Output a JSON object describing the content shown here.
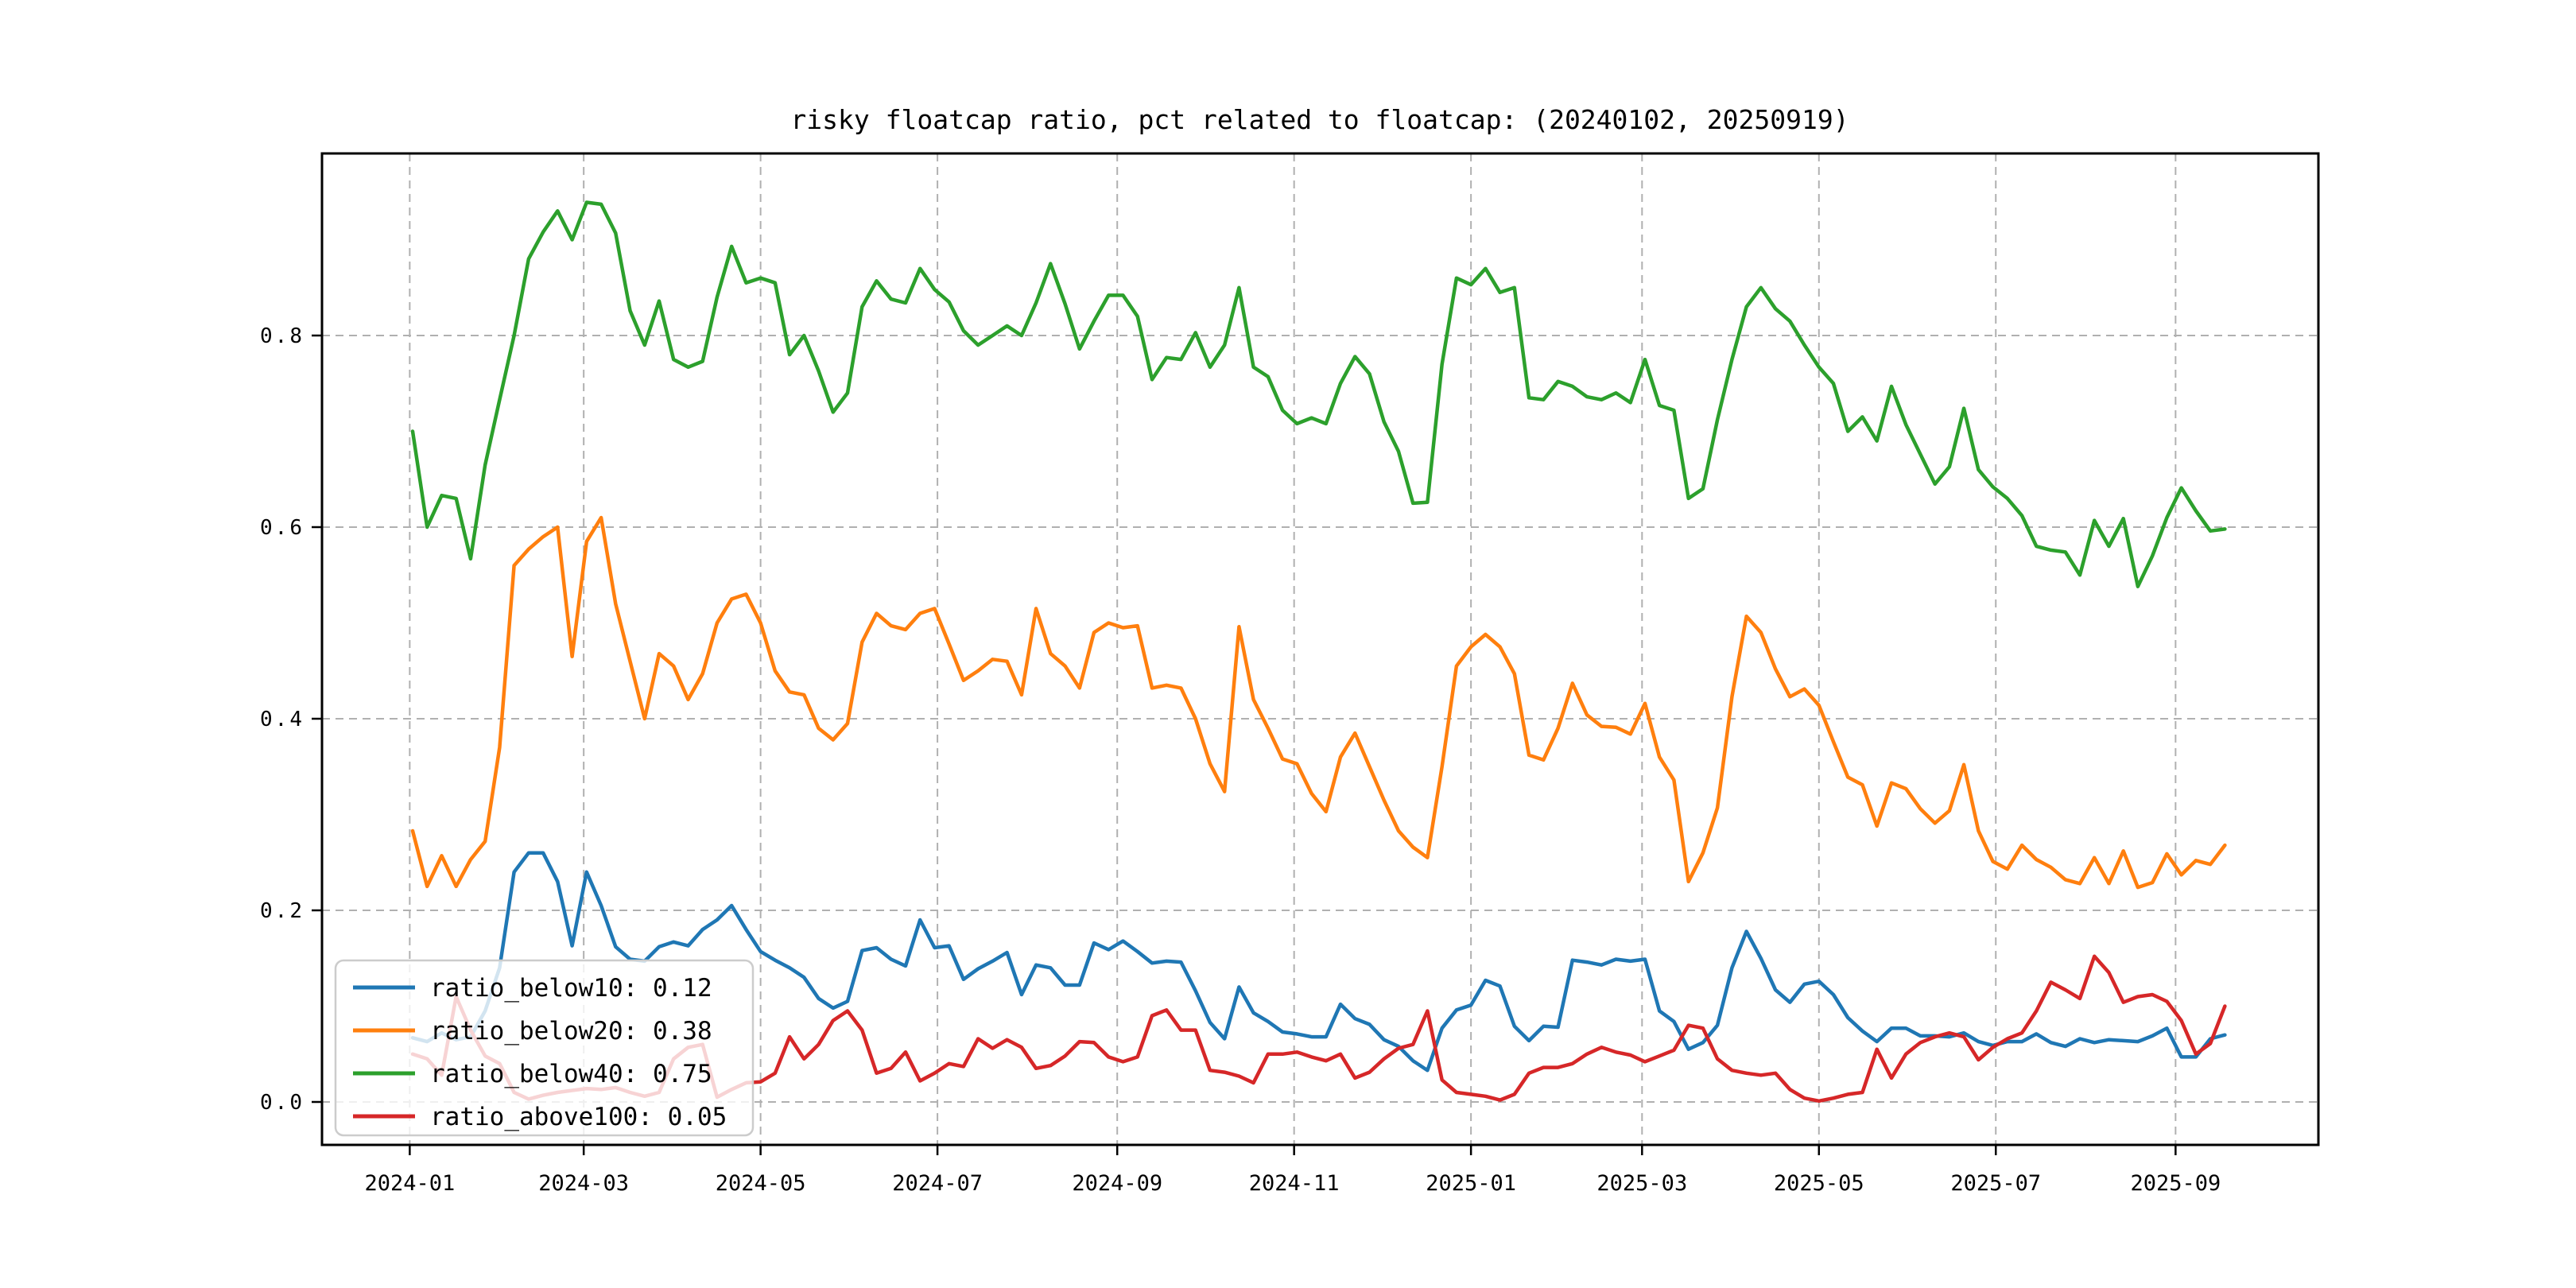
{
  "title": "risky floatcap ratio, pct related to floatcap: (20240102, 20250919)",
  "legend": {
    "position": "lower left",
    "items": [
      {
        "label": "ratio_below10: 0.12",
        "series": "ratio_below10",
        "color": "#1f77b4"
      },
      {
        "label": "ratio_below20: 0.38",
        "series": "ratio_below20",
        "color": "#ff7f0e"
      },
      {
        "label": "ratio_below40: 0.75",
        "series": "ratio_below40",
        "color": "#2ca02c"
      },
      {
        "label": "ratio_above100: 0.05",
        "series": "ratio_above100",
        "color": "#d62728"
      }
    ]
  },
  "colors": {
    "background": "#ffffff",
    "spine": "#000000",
    "grid": "#b0b0b0",
    "tick_label": "#000000",
    "legend_border": "#cccccc",
    "legend_fill": "#ffffff"
  },
  "chart_data": {
    "type": "line",
    "title": "risky floatcap ratio, pct related to floatcap: (20240102, 20250919)",
    "xlabel": "",
    "ylabel": "",
    "grid": true,
    "grid_style": "dashed",
    "legend_position": "lower left",
    "date_range": [
      "20240102",
      "20250919"
    ],
    "x_unit_days_total": 626,
    "x_step_days": 5,
    "x_tick_days": [
      -1,
      59,
      120,
      181,
      243,
      304,
      365,
      424,
      485,
      546,
      608
    ],
    "x_tick_labels": [
      "2024-01",
      "2024-03",
      "2024-05",
      "2024-07",
      "2024-09",
      "2024-11",
      "2025-01",
      "2025-03",
      "2025-05",
      "2025-07",
      "2025-09"
    ],
    "y_ticks": [
      0.0,
      0.2,
      0.4,
      0.6,
      0.8
    ],
    "y_tick_labels": [
      "0.0",
      "0.2",
      "0.4",
      "0.6",
      "0.8"
    ],
    "ylim": [
      -0.045,
      0.99
    ],
    "series": [
      {
        "name": "ratio_below10",
        "legend_value": 0.12,
        "color": "#1f77b4",
        "values": [
          0.067,
          0.063,
          0.072,
          0.065,
          0.068,
          0.095,
          0.14,
          0.24,
          0.26,
          0.26,
          0.23,
          0.163,
          0.24,
          0.205,
          0.162,
          0.149,
          0.147,
          0.162,
          0.167,
          0.163,
          0.18,
          0.19,
          0.205,
          0.18,
          0.157,
          0.148,
          0.14,
          0.13,
          0.108,
          0.098,
          0.105,
          0.158,
          0.161,
          0.149,
          0.142,
          0.19,
          0.161,
          0.163,
          0.128,
          0.139,
          0.147,
          0.156,
          0.112,
          0.143,
          0.14,
          0.122,
          0.122,
          0.166,
          0.159,
          0.168,
          0.157,
          0.145,
          0.147,
          0.146,
          0.116,
          0.083,
          0.066,
          0.12,
          0.093,
          0.084,
          0.073,
          0.071,
          0.068,
          0.068,
          0.102,
          0.087,
          0.081,
          0.065,
          0.058,
          0.043,
          0.033,
          0.077,
          0.096,
          0.101,
          0.127,
          0.121,
          0.079,
          0.064,
          0.079,
          0.078,
          0.148,
          0.146,
          0.143,
          0.149,
          0.147,
          0.149,
          0.095,
          0.084,
          0.055,
          0.062,
          0.08,
          0.14,
          0.178,
          0.15,
          0.117,
          0.104,
          0.123,
          0.126,
          0.112,
          0.088,
          0.074,
          0.063,
          0.077,
          0.077,
          0.069,
          0.069,
          0.068,
          0.072,
          0.063,
          0.059,
          0.063,
          0.063,
          0.071,
          0.062,
          0.058,
          0.066,
          0.062,
          0.065,
          0.064,
          0.063,
          0.069,
          0.077,
          0.047,
          0.047,
          0.066,
          0.07
        ]
      },
      {
        "name": "ratio_below20",
        "legend_value": 0.38,
        "color": "#ff7f0e",
        "values": [
          0.283,
          0.225,
          0.257,
          0.225,
          0.253,
          0.272,
          0.37,
          0.56,
          0.577,
          0.59,
          0.6,
          0.465,
          0.585,
          0.61,
          0.52,
          0.46,
          0.4,
          0.468,
          0.455,
          0.42,
          0.447,
          0.5,
          0.525,
          0.53,
          0.5,
          0.45,
          0.428,
          0.425,
          0.39,
          0.378,
          0.395,
          0.48,
          0.51,
          0.497,
          0.493,
          0.51,
          0.515,
          0.478,
          0.44,
          0.45,
          0.462,
          0.46,
          0.425,
          0.515,
          0.468,
          0.455,
          0.432,
          0.49,
          0.5,
          0.495,
          0.497,
          0.432,
          0.435,
          0.432,
          0.4,
          0.353,
          0.324,
          0.496,
          0.42,
          0.39,
          0.358,
          0.353,
          0.322,
          0.303,
          0.36,
          0.385,
          0.35,
          0.315,
          0.283,
          0.266,
          0.255,
          0.35,
          0.455,
          0.475,
          0.488,
          0.475,
          0.447,
          0.362,
          0.357,
          0.39,
          0.437,
          0.404,
          0.392,
          0.391,
          0.384,
          0.416,
          0.36,
          0.336,
          0.23,
          0.26,
          0.307,
          0.423,
          0.507,
          0.49,
          0.452,
          0.423,
          0.431,
          0.414,
          0.376,
          0.339,
          0.331,
          0.288,
          0.333,
          0.327,
          0.306,
          0.291,
          0.304,
          0.352,
          0.283,
          0.251,
          0.243,
          0.268,
          0.253,
          0.245,
          0.232,
          0.228,
          0.255,
          0.228,
          0.262,
          0.224,
          0.229,
          0.259,
          0.237,
          0.252,
          0.248,
          0.268
        ]
      },
      {
        "name": "ratio_below40",
        "legend_value": 0.75,
        "color": "#2ca02c",
        "values": [
          0.7,
          0.6,
          0.633,
          0.63,
          0.567,
          0.665,
          0.733,
          0.8,
          0.88,
          0.908,
          0.93,
          0.9,
          0.939,
          0.937,
          0.907,
          0.826,
          0.79,
          0.836,
          0.775,
          0.767,
          0.773,
          0.84,
          0.893,
          0.855,
          0.86,
          0.855,
          0.78,
          0.8,
          0.763,
          0.72,
          0.74,
          0.83,
          0.857,
          0.838,
          0.834,
          0.87,
          0.848,
          0.835,
          0.805,
          0.79,
          0.8,
          0.81,
          0.8,
          0.834,
          0.875,
          0.833,
          0.786,
          0.815,
          0.842,
          0.842,
          0.82,
          0.754,
          0.777,
          0.775,
          0.803,
          0.767,
          0.79,
          0.85,
          0.767,
          0.757,
          0.722,
          0.708,
          0.714,
          0.708,
          0.75,
          0.778,
          0.76,
          0.71,
          0.679,
          0.625,
          0.626,
          0.77,
          0.86,
          0.853,
          0.87,
          0.845,
          0.85,
          0.735,
          0.733,
          0.752,
          0.747,
          0.736,
          0.733,
          0.74,
          0.73,
          0.775,
          0.727,
          0.722,
          0.63,
          0.64,
          0.712,
          0.775,
          0.83,
          0.85,
          0.828,
          0.815,
          0.79,
          0.767,
          0.75,
          0.7,
          0.715,
          0.69,
          0.747,
          0.707,
          0.676,
          0.645,
          0.663,
          0.724,
          0.66,
          0.642,
          0.63,
          0.612,
          0.58,
          0.576,
          0.574,
          0.55,
          0.607,
          0.58,
          0.609,
          0.538,
          0.57,
          0.61,
          0.641,
          0.617,
          0.596,
          0.598
        ]
      },
      {
        "name": "ratio_above100",
        "legend_value": 0.05,
        "color": "#d62728",
        "values": [
          0.05,
          0.045,
          0.028,
          0.11,
          0.075,
          0.048,
          0.04,
          0.01,
          0.003,
          0.007,
          0.01,
          0.012,
          0.014,
          0.013,
          0.015,
          0.01,
          0.006,
          0.01,
          0.045,
          0.057,
          0.06,
          0.005,
          0.013,
          0.02,
          0.021,
          0.03,
          0.068,
          0.045,
          0.06,
          0.085,
          0.095,
          0.075,
          0.03,
          0.035,
          0.052,
          0.022,
          0.03,
          0.04,
          0.037,
          0.066,
          0.056,
          0.065,
          0.057,
          0.035,
          0.038,
          0.048,
          0.063,
          0.062,
          0.047,
          0.042,
          0.047,
          0.09,
          0.096,
          0.075,
          0.075,
          0.033,
          0.031,
          0.027,
          0.02,
          0.05,
          0.05,
          0.052,
          0.047,
          0.043,
          0.05,
          0.025,
          0.031,
          0.045,
          0.056,
          0.06,
          0.095,
          0.023,
          0.01,
          0.008,
          0.006,
          0.002,
          0.008,
          0.03,
          0.036,
          0.036,
          0.04,
          0.05,
          0.057,
          0.052,
          0.049,
          0.042,
          0.048,
          0.054,
          0.08,
          0.077,
          0.045,
          0.033,
          0.03,
          0.028,
          0.03,
          0.013,
          0.004,
          0.001,
          0.004,
          0.008,
          0.01,
          0.055,
          0.025,
          0.05,
          0.062,
          0.068,
          0.072,
          0.068,
          0.044,
          0.057,
          0.066,
          0.072,
          0.095,
          0.125,
          0.117,
          0.108,
          0.152,
          0.135,
          0.104,
          0.11,
          0.112,
          0.105,
          0.085,
          0.05,
          0.061,
          0.1
        ]
      }
    ]
  }
}
